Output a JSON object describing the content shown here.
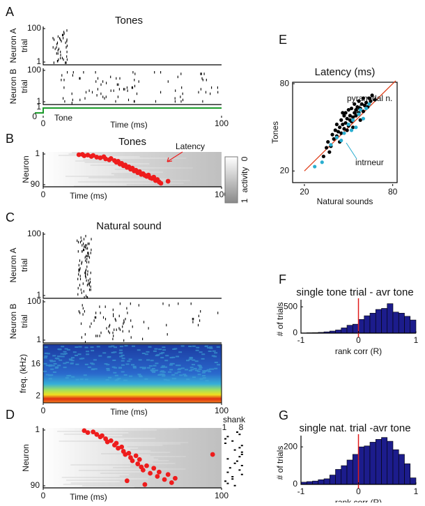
{
  "chart_data": [
    {
      "type": "raster",
      "panel": "A",
      "title": "Tones",
      "xlabel": "Time (ms)",
      "xlim": [
        0,
        100
      ],
      "xticks": [
        0,
        100
      ],
      "rows": [
        {
          "ylabel": "Neuron A",
          "ysublabel": "trial",
          "ylim": [
            1,
            100
          ],
          "yticks": [
            1,
            100
          ]
        },
        {
          "ylabel": "Neuron B",
          "ysublabel": "trial",
          "ylim": [
            1,
            100
          ],
          "yticks": [
            1,
            100
          ]
        }
      ],
      "stimulus": {
        "label": "Tone",
        "color": "#1a9a2a",
        "ylim": [
          0,
          1
        ],
        "yticks": [
          0,
          1
        ]
      }
    },
    {
      "type": "scatter",
      "panel": "B",
      "title": "Tones",
      "annotation": "Latency",
      "xlabel": "Time (ms)",
      "ylabel": "Neuron",
      "xlim": [
        0,
        100
      ],
      "xticks": [
        0,
        100
      ],
      "ylim": [
        1,
        90
      ],
      "yticks": [
        1,
        90
      ],
      "y_inverted": true,
      "colorbar": {
        "label": "activity",
        "ticks": [
          0,
          1
        ]
      },
      "series": [
        {
          "color": "#ee1c1c",
          "x": [
            20,
            22,
            23,
            25,
            27,
            28,
            30,
            32,
            34,
            35,
            37,
            38,
            40,
            41,
            42,
            43,
            44,
            45,
            46,
            47,
            48,
            49,
            50,
            51,
            52,
            53,
            54,
            55,
            56,
            57,
            58,
            59,
            60,
            61,
            62,
            63,
            64,
            65,
            66,
            70
          ],
          "values": [
            3,
            2,
            6,
            4,
            8,
            5,
            10,
            12,
            9,
            15,
            18,
            14,
            20,
            25,
            22,
            30,
            28,
            35,
            33,
            40,
            38,
            45,
            42,
            50,
            48,
            55,
            52,
            60,
            58,
            63,
            66,
            62,
            70,
            72,
            68,
            78,
            75,
            82,
            86,
            80
          ]
        }
      ]
    },
    {
      "type": "raster",
      "panel": "C",
      "title": "Natural sound",
      "xlabel": "Time (ms)",
      "xlim": [
        0,
        100
      ],
      "xticks": [
        0,
        100
      ],
      "rows": [
        {
          "ylabel": "Neuron A",
          "ysublabel": "trial",
          "ylim": [
            1,
            100
          ],
          "yticks": [
            1,
            100
          ]
        },
        {
          "ylabel": "Neuron B",
          "ysublabel": "trial",
          "ylim": [
            1,
            100
          ],
          "yticks": [
            1,
            100
          ]
        }
      ],
      "spectrogram": {
        "ylabel": "freq. (kHz)",
        "ylim": [
          1.3,
          57
        ],
        "yticks": [
          2,
          16
        ],
        "log_y": true
      }
    },
    {
      "type": "scatter",
      "panel": "D",
      "xlabel": "Time (ms)",
      "ylabel": "Neuron",
      "xlim": [
        0,
        100
      ],
      "xticks": [
        0,
        100
      ],
      "ylim": [
        1,
        90
      ],
      "yticks": [
        1,
        90
      ],
      "y_inverted": true,
      "shank": {
        "label": "shank",
        "ticks": [
          1,
          8
        ]
      },
      "series": [
        {
          "color": "#ee1c1c",
          "x": [
            23,
            25,
            28,
            30,
            32,
            33,
            35,
            36,
            38,
            40,
            41,
            42,
            44,
            45,
            46,
            48,
            49,
            50,
            52,
            53,
            54,
            55,
            56,
            58,
            60,
            62,
            64,
            65,
            68,
            70,
            72,
            74,
            95,
            47,
            57
          ],
          "values": [
            2,
            5,
            4,
            8,
            12,
            10,
            15,
            20,
            18,
            25,
            22,
            30,
            28,
            35,
            40,
            38,
            45,
            50,
            42,
            55,
            48,
            60,
            65,
            58,
            70,
            62,
            75,
            68,
            80,
            72,
            85,
            78,
            40,
            82,
            88
          ]
        }
      ]
    },
    {
      "type": "scatter",
      "panel": "E",
      "title": "Latency (ms)",
      "xlabel": "Natural sounds",
      "ylabel": "Tones",
      "xlim": [
        12,
        83
      ],
      "xticks": [
        20,
        80
      ],
      "ylim": [
        12,
        81
      ],
      "yticks": [
        20,
        80
      ],
      "annotations": [
        "pyramidal n.",
        "intrneur"
      ],
      "fit_line": {
        "color": "#e0401c",
        "x": [
          20,
          82
        ],
        "values": [
          20,
          82
        ]
      },
      "series": [
        {
          "color": "#000000",
          "x": [
            33,
            35,
            36,
            38,
            39,
            40,
            41,
            42,
            42,
            43,
            44,
            45,
            45,
            46,
            47,
            47,
            48,
            48,
            49,
            50,
            50,
            51,
            51,
            52,
            52,
            53,
            54,
            54,
            55,
            55,
            56,
            57,
            57,
            58,
            59,
            60,
            60,
            61,
            62,
            63,
            64,
            65,
            66,
            68,
            37,
            44,
            49,
            53,
            58,
            46
          ],
          "values": [
            30,
            36,
            40,
            37,
            45,
            42,
            48,
            44,
            52,
            47,
            50,
            46,
            55,
            52,
            49,
            58,
            53,
            60,
            56,
            51,
            62,
            55,
            58,
            54,
            63,
            57,
            60,
            66,
            58,
            62,
            64,
            60,
            68,
            63,
            66,
            61,
            70,
            65,
            67,
            64,
            70,
            68,
            72,
            69,
            33,
            40,
            48,
            50,
            55,
            60
          ]
        },
        {
          "color": "#2aaed0",
          "x": [
            27,
            32,
            38,
            42,
            47,
            50,
            53,
            55,
            58,
            60,
            62,
            64,
            45,
            52,
            57
          ],
          "values": [
            23,
            26,
            38,
            43,
            46,
            52,
            55,
            50,
            62,
            56,
            63,
            66,
            41,
            48,
            59
          ]
        }
      ]
    },
    {
      "type": "histogram",
      "panel": "F",
      "title": "single tone trial - avr tone",
      "xlabel": "rank corr (R)",
      "ylabel": "# of trials",
      "color": "#1c1c8c",
      "vline": {
        "value": 0,
        "color": "#e01c1c"
      },
      "bins": [
        -1,
        -0.9,
        -0.8,
        -0.7,
        -0.6,
        -0.5,
        -0.4,
        -0.3,
        -0.2,
        -0.1,
        0,
        0.1,
        0.2,
        0.3,
        0.4,
        0.5,
        0.6,
        0.7,
        0.8,
        0.9,
        1
      ],
      "values": [
        5,
        8,
        10,
        15,
        25,
        40,
        60,
        100,
        150,
        170,
        260,
        330,
        380,
        450,
        470,
        560,
        400,
        380,
        320,
        250
      ],
      "xlim": [
        -1,
        1
      ],
      "xticks": [
        -1,
        0,
        1
      ],
      "ylim": [
        0,
        635
      ],
      "yticks": [
        0,
        500
      ]
    },
    {
      "type": "histogram",
      "panel": "G",
      "title": "single nat. trial -avr tone",
      "xlabel": "rank corr (R)",
      "ylabel": "# of trials",
      "color": "#1c1c8c",
      "vline": {
        "value": 0,
        "color": "#e01c1c"
      },
      "bins": [
        -1,
        -0.9,
        -0.8,
        -0.7,
        -0.6,
        -0.5,
        -0.4,
        -0.3,
        -0.2,
        -0.1,
        0,
        0.1,
        0.2,
        0.3,
        0.4,
        0.5,
        0.6,
        0.7,
        0.8,
        0.9,
        1
      ],
      "values": [
        12,
        15,
        18,
        25,
        30,
        50,
        80,
        100,
        130,
        160,
        200,
        205,
        225,
        240,
        250,
        230,
        185,
        160,
        110,
        35
      ],
      "xlim": [
        -1,
        1
      ],
      "xticks": [
        -1,
        0,
        1
      ],
      "ylim": [
        0,
        260
      ],
      "yticks": [
        0,
        200
      ]
    }
  ]
}
